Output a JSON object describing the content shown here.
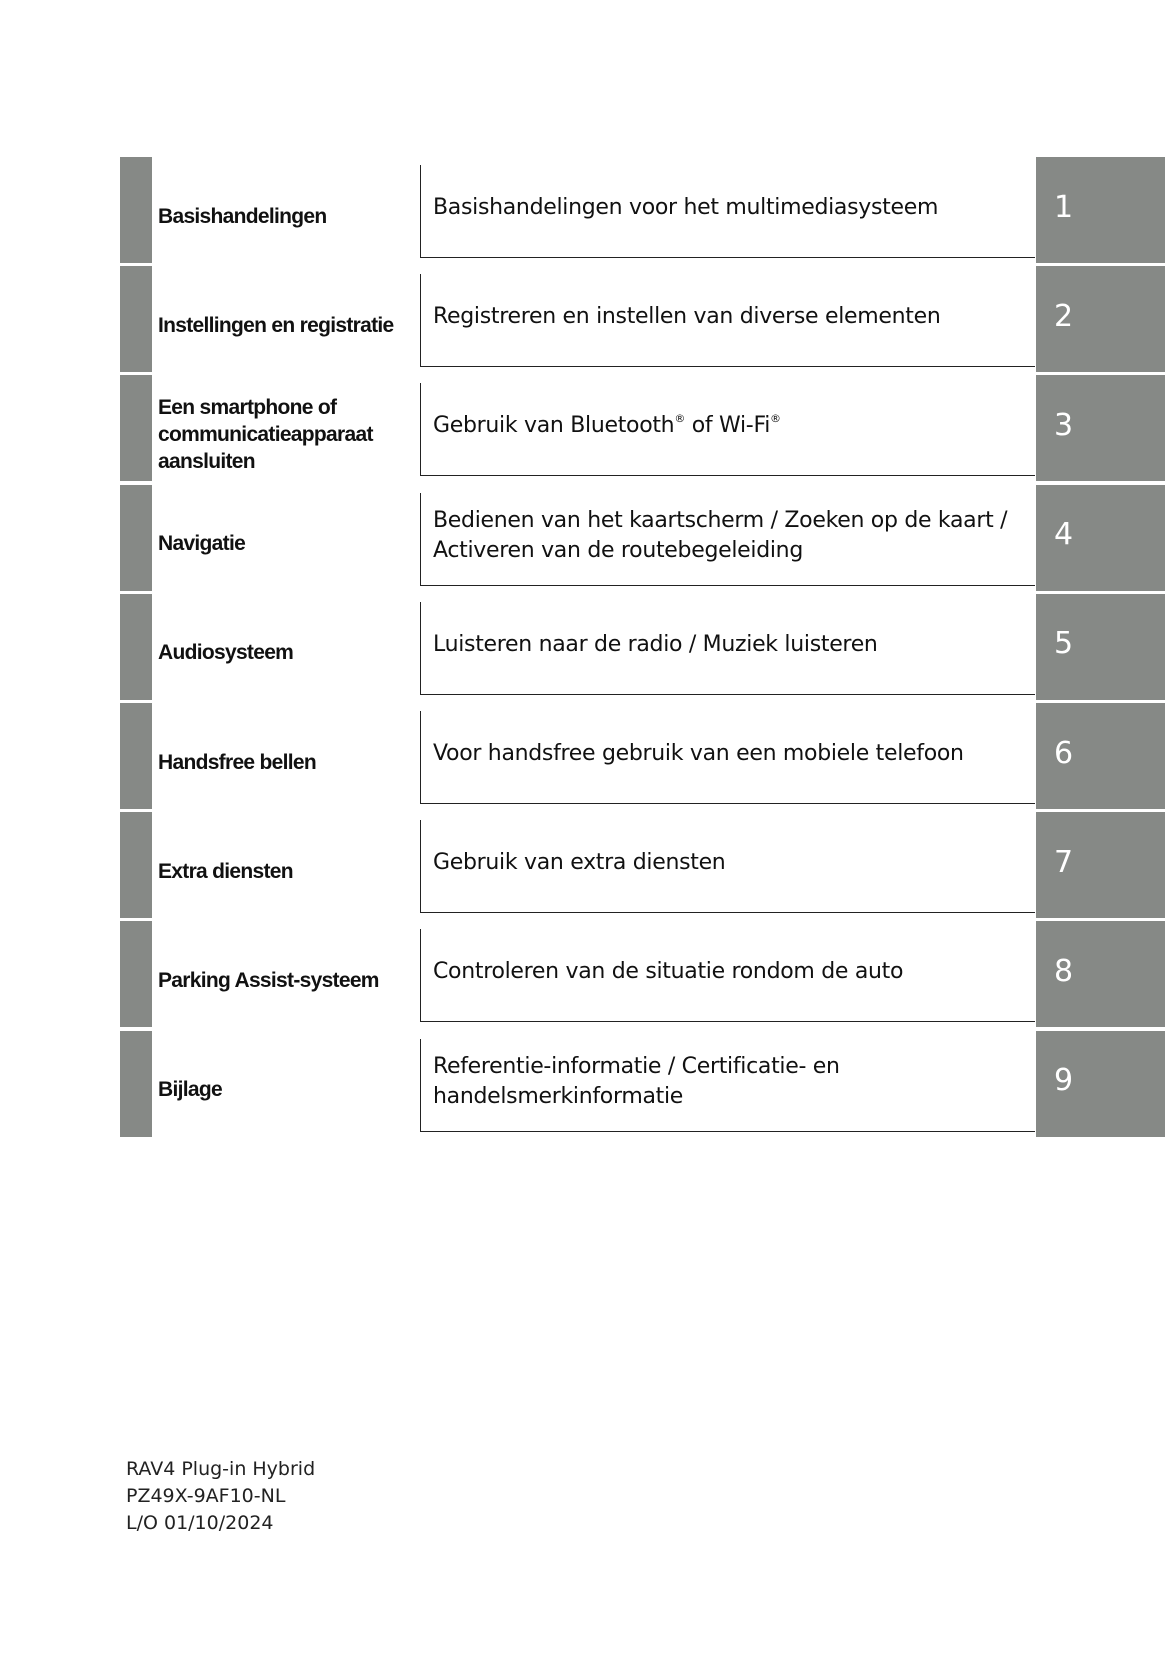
{
  "colors": {
    "tab_gray": "#868986",
    "text": "#111111"
  },
  "sections": [
    {
      "label": "Basishandelingen",
      "description": "Basishandelingen voor het multimediasysteem",
      "number": "1"
    },
    {
      "label": "Instellingen en registratie",
      "description": "Registreren en instellen van diverse elementen",
      "number": "2"
    },
    {
      "label": "Een smartphone of communicatieapparaat aansluiten",
      "description": "Gebruik van Bluetooth® of Wi-Fi®",
      "number": "3"
    },
    {
      "label": "Navigatie",
      "description": "Bedienen van het kaartscherm / Zoeken op de kaart / Activeren van de routebegeleiding",
      "number": "4"
    },
    {
      "label": "Audiosysteem",
      "description": "Luisteren naar de radio / Muziek luisteren",
      "number": "5"
    },
    {
      "label": "Handsfree bellen",
      "description": "Voor handsfree gebruik van een mobiele telefoon",
      "number": "6"
    },
    {
      "label": "Extra diensten",
      "description": "Gebruik van extra diensten",
      "number": "7"
    },
    {
      "label": "Parking Assist-systeem",
      "description": "Controleren van de situatie rondom de auto",
      "number": "8"
    },
    {
      "label": "Bijlage",
      "description": "Referentie-informatie / Certificatie- en handelsmerkinformatie",
      "number": "9"
    }
  ],
  "footer": {
    "model": "RAV4 Plug-in Hybrid",
    "code": "PZ49X-9AF10-NL",
    "date": "L/O 01/10/2024"
  }
}
